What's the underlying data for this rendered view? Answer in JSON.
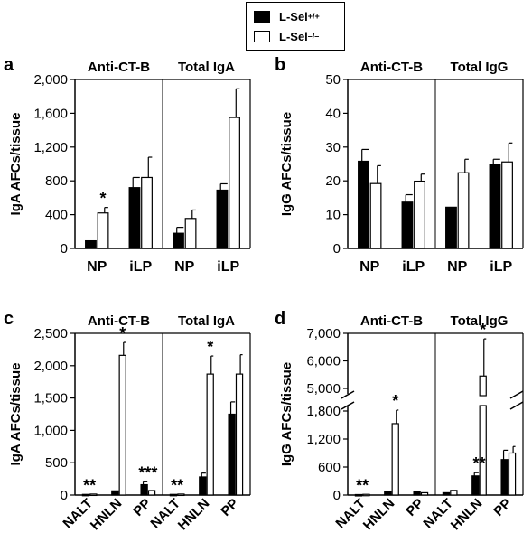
{
  "legend": [
    {
      "label": "L-Sel",
      "sup": "+/+",
      "color": "#000000"
    },
    {
      "label": "L-Sel",
      "sup": "–/–",
      "color": "#ffffff"
    }
  ],
  "chart_data": [
    {
      "panel": "a",
      "type": "bar",
      "groups": [
        "Anti-CT-B",
        "Total IgA"
      ],
      "categories": [
        "NP",
        "iLP",
        "NP",
        "iLP"
      ],
      "ylabel": "IgA AFCs/tissue",
      "ylim": [
        0,
        2000
      ],
      "yticks": [
        "0",
        "400",
        "800",
        "1,200",
        "1,600",
        "2,000"
      ],
      "series": [
        {
          "name": "L-Sel+/+",
          "values": [
            90,
            720,
            180,
            690
          ],
          "errors": [
            0,
            120,
            70,
            75
          ]
        },
        {
          "name": "L-Sel–/–",
          "values": [
            420,
            840,
            355,
            1550
          ],
          "errors": [
            65,
            240,
            100,
            340
          ]
        }
      ],
      "annotations": [
        {
          "category": 0,
          "series": 1,
          "text": "*"
        }
      ]
    },
    {
      "panel": "b",
      "type": "bar",
      "groups": [
        "Anti-CT-B",
        "Total IgG"
      ],
      "categories": [
        "NP",
        "iLP",
        "NP",
        "iLP"
      ],
      "ylabel": "IgG AFCs/tissue",
      "ylim": [
        0,
        50
      ],
      "yticks": [
        "0",
        "10",
        "20",
        "30",
        "40",
        "50"
      ],
      "series": [
        {
          "name": "L-Sel+/+",
          "values": [
            25.8,
            13.7,
            12.2,
            24.8
          ],
          "errors": [
            3.5,
            2.2,
            0,
            1.6
          ]
        },
        {
          "name": "L-Sel–/–",
          "values": [
            19.2,
            19.9,
            22.4,
            25.6
          ],
          "errors": [
            5.3,
            2.1,
            4.0,
            5.6
          ]
        }
      ],
      "annotations": []
    },
    {
      "panel": "c",
      "type": "bar",
      "groups": [
        "Anti-CT-B",
        "Total IgA"
      ],
      "categories": [
        "NALT",
        "HNLN",
        "PP",
        "NALT",
        "HNLN",
        "PP"
      ],
      "ylabel": "IgA AFCs/tissue",
      "ylim": [
        0,
        2500
      ],
      "yticks": [
        "0",
        "500",
        "1,000",
        "1,500",
        "2,000",
        "2,500"
      ],
      "series": [
        {
          "name": "L-Sel+/+",
          "values": [
            10,
            65,
            160,
            10,
            280,
            1250
          ],
          "errors": [
            0,
            0,
            45,
            0,
            60,
            190
          ]
        },
        {
          "name": "L-Sel–/–",
          "values": [
            15,
            2160,
            70,
            15,
            1870,
            1870
          ],
          "errors": [
            0,
            200,
            0,
            0,
            280,
            300
          ]
        }
      ],
      "annotations": [
        {
          "category": 0,
          "series": 0,
          "text": "**"
        },
        {
          "category": 1,
          "series": 1,
          "text": "*"
        },
        {
          "category": 2,
          "series": 0,
          "text": "***"
        },
        {
          "category": 3,
          "series": 0,
          "text": "**"
        },
        {
          "category": 4,
          "series": 1,
          "text": "*"
        }
      ]
    },
    {
      "panel": "d",
      "type": "bar",
      "groups": [
        "Anti-CT-B",
        "Total IgG"
      ],
      "categories": [
        "NALT",
        "HNLN",
        "PP",
        "NALT",
        "HNLN",
        "PP"
      ],
      "ylabel": "IgG AFCs/tissue",
      "axis_break": [
        1900,
        5000
      ],
      "lower_yticks": [
        "0",
        "600",
        "1,200",
        "1,800"
      ],
      "upper_yticks": [
        "5,000",
        "6,000",
        "7,000"
      ],
      "series": [
        {
          "name": "L-Sel+/+",
          "values": [
            10,
            80,
            80,
            50,
            410,
            760
          ],
          "errors": [
            0,
            0,
            0,
            0,
            70,
            200
          ]
        },
        {
          "name": "L-Sel–/–",
          "values": [
            15,
            1530,
            50,
            100,
            5450,
            900
          ],
          "errors": [
            0,
            290,
            0,
            0,
            1350,
            140
          ]
        }
      ],
      "annotations": [
        {
          "category": 0,
          "series": 0,
          "text": "**"
        },
        {
          "category": 1,
          "series": 1,
          "text": "*"
        },
        {
          "category": 4,
          "series": 0,
          "text": "**"
        },
        {
          "category": 4,
          "series": 1,
          "text": "*"
        }
      ]
    }
  ]
}
